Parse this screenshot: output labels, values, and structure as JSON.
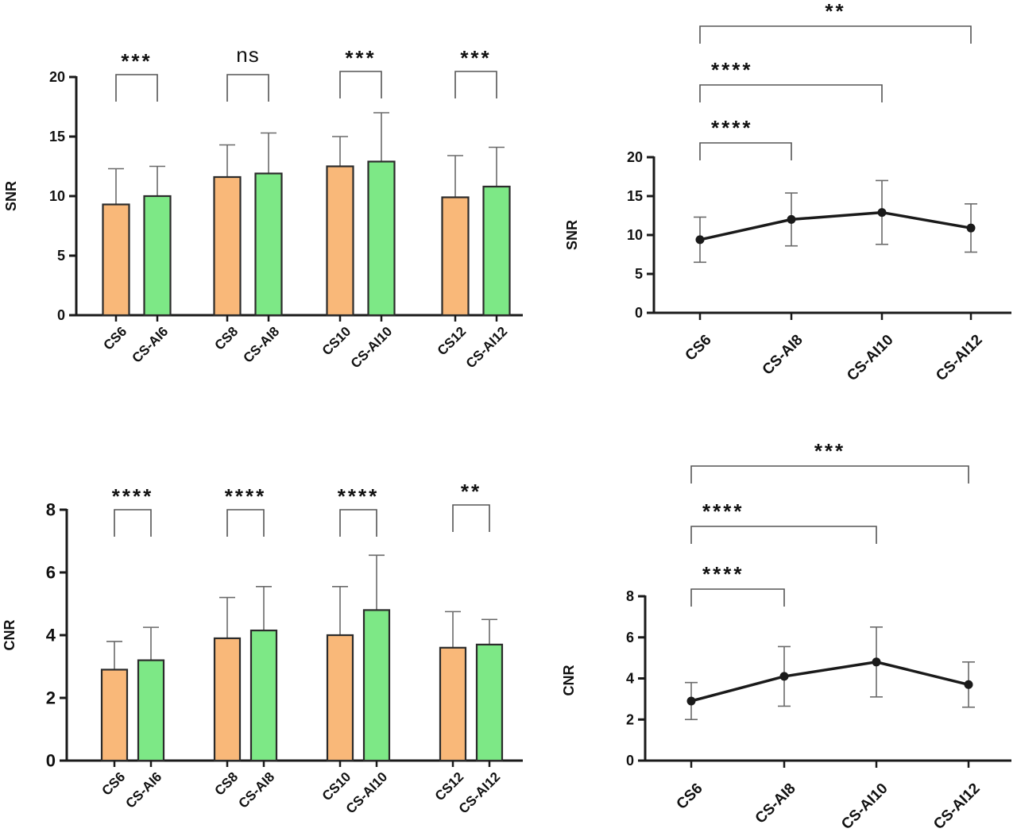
{
  "colors": {
    "cs": "#f9b879",
    "csai": "#7de886",
    "axis": "#1a1a1a",
    "bracket": "#555555",
    "errbar": "#6a6a6a",
    "line": "#1a1a1a"
  },
  "chart_data": [
    {
      "id": "bar-snr",
      "type": "bar",
      "ylabel": "SNR",
      "ylim": [
        0,
        20
      ],
      "yticks": [
        0,
        5,
        10,
        15,
        20
      ],
      "groups": [
        {
          "bars": [
            {
              "label": "CS6",
              "value": 9.3,
              "err": 3.0,
              "kind": "cs"
            },
            {
              "label": "CS-AI6",
              "value": 10.0,
              "err": 2.5,
              "kind": "csai"
            }
          ],
          "sig": "***"
        },
        {
          "bars": [
            {
              "label": "CS8",
              "value": 11.6,
              "err": 2.7,
              "kind": "cs"
            },
            {
              "label": "CS-AI8",
              "value": 11.9,
              "err": 3.4,
              "kind": "csai"
            }
          ],
          "sig": "ns"
        },
        {
          "bars": [
            {
              "label": "CS10",
              "value": 12.5,
              "err": 2.5,
              "kind": "cs"
            },
            {
              "label": "CS-AI10",
              "value": 12.9,
              "err": 4.1,
              "kind": "csai"
            }
          ],
          "sig": "***"
        },
        {
          "bars": [
            {
              "label": "CS12",
              "value": 9.9,
              "err": 3.5,
              "kind": "cs"
            },
            {
              "label": "CS-AI12",
              "value": 10.8,
              "err": 3.3,
              "kind": "csai"
            }
          ],
          "sig": "***"
        }
      ]
    },
    {
      "id": "line-snr",
      "type": "line",
      "ylabel": "SNR",
      "ylim": [
        0,
        20
      ],
      "yticks": [
        0,
        5,
        10,
        15,
        20
      ],
      "categories": [
        "CS6",
        "CS-AI8",
        "CS-AI10",
        "CS-AI12"
      ],
      "values": [
        9.4,
        12.0,
        12.9,
        10.9
      ],
      "err": [
        2.9,
        3.4,
        4.1,
        3.1
      ],
      "comparisons": [
        {
          "from": 0,
          "to": 1,
          "sig": "****"
        },
        {
          "from": 0,
          "to": 2,
          "sig": "****"
        },
        {
          "from": 0,
          "to": 3,
          "sig": "**"
        }
      ]
    },
    {
      "id": "bar-cnr",
      "type": "bar",
      "ylabel": "CNR",
      "ylim": [
        0,
        8
      ],
      "yticks": [
        0,
        2,
        4,
        6,
        8
      ],
      "groups": [
        {
          "bars": [
            {
              "label": "CS6",
              "value": 2.9,
              "err": 0.9,
              "kind": "cs"
            },
            {
              "label": "CS-AI6",
              "value": 3.2,
              "err": 1.05,
              "kind": "csai"
            }
          ],
          "sig": "****"
        },
        {
          "bars": [
            {
              "label": "CS8",
              "value": 3.9,
              "err": 1.3,
              "kind": "cs"
            },
            {
              "label": "CS-AI8",
              "value": 4.15,
              "err": 1.4,
              "kind": "csai"
            }
          ],
          "sig": "****"
        },
        {
          "bars": [
            {
              "label": "CS10",
              "value": 4.0,
              "err": 1.55,
              "kind": "cs"
            },
            {
              "label": "CS-AI10",
              "value": 4.8,
              "err": 1.75,
              "kind": "csai"
            }
          ],
          "sig": "****"
        },
        {
          "bars": [
            {
              "label": "CS12",
              "value": 3.6,
              "err": 1.15,
              "kind": "cs"
            },
            {
              "label": "CS-AI12",
              "value": 3.7,
              "err": 0.8,
              "kind": "csai"
            }
          ],
          "sig": "**"
        }
      ]
    },
    {
      "id": "line-cnr",
      "type": "line",
      "ylabel": "CNR",
      "ylim": [
        0,
        8
      ],
      "yticks": [
        0,
        2,
        4,
        6,
        8
      ],
      "categories": [
        "CS6",
        "CS-AI8",
        "CS-AI10",
        "CS-AI12"
      ],
      "values": [
        2.9,
        4.1,
        4.8,
        3.7
      ],
      "err": [
        0.9,
        1.45,
        1.7,
        1.1
      ],
      "comparisons": [
        {
          "from": 0,
          "to": 1,
          "sig": "****"
        },
        {
          "from": 0,
          "to": 2,
          "sig": "****"
        },
        {
          "from": 0,
          "to": 3,
          "sig": "***"
        }
      ]
    }
  ]
}
